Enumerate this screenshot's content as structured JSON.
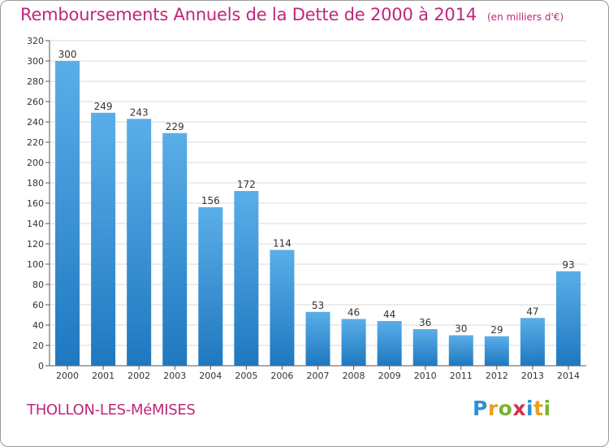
{
  "header": {
    "title": "Remboursements Annuels de la Dette de 2000 à 2014",
    "unit": "(en milliers d'€)"
  },
  "footer": {
    "city": "THOLLON-LES-MéMISES",
    "logo": "Proxiti"
  },
  "colors": {
    "title": "#c0267a",
    "bar_top": "#5aaee8",
    "bar_bottom": "#1f78c0",
    "grid": "#d8d8d8"
  },
  "chart_data": {
    "type": "bar",
    "title": "Remboursements Annuels de la Dette de 2000 à 2014",
    "subtitle": "(en milliers d'€)",
    "categories": [
      "2000",
      "2001",
      "2002",
      "2003",
      "2004",
      "2005",
      "2006",
      "2007",
      "2008",
      "2009",
      "2010",
      "2011",
      "2012",
      "2013",
      "2014"
    ],
    "values": [
      300,
      249,
      243,
      229,
      156,
      172,
      114,
      53,
      46,
      44,
      36,
      30,
      29,
      47,
      93
    ],
    "ylim": [
      0,
      320
    ],
    "ytick_step": 20,
    "grid": true,
    "data_labels": true
  }
}
